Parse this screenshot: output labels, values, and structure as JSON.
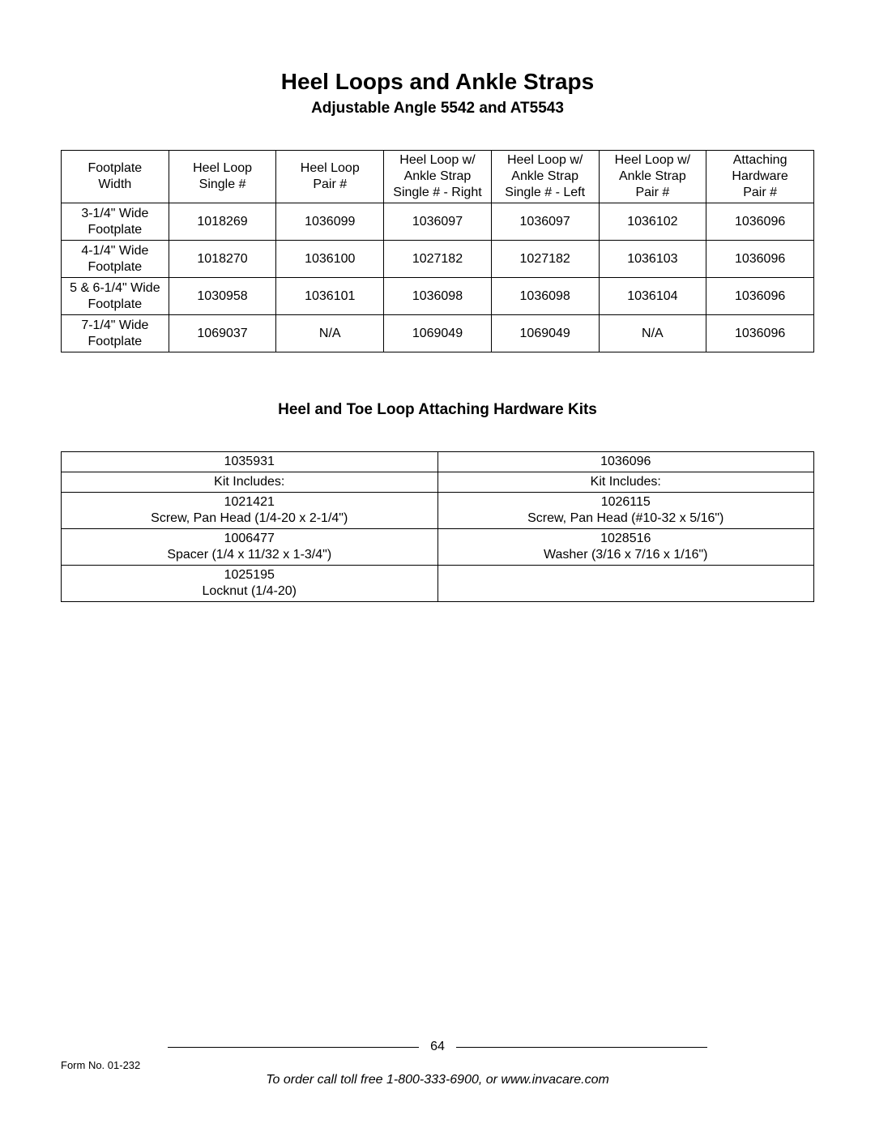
{
  "title": "Heel Loops and Ankle Straps",
  "subtitle": "Adjustable Angle 5542 and AT5543",
  "section2_title": "Heel and Toe Loop Attaching Hardware Kits",
  "page_number": "64",
  "form_no": "Form No. 01-232",
  "order_line": "To order call toll free 1-800-333-6900, or www.invacare.com",
  "table1": {
    "headers": [
      "Footplate\nWidth",
      "Heel Loop\nSingle #",
      "Heel Loop\nPair #",
      "Heel Loop w/\nAnkle Strap\nSingle #  - Right",
      "Heel Loop w/\nAnkle Strap\nSingle #  - Left",
      "Heel Loop w/\nAnkle Strap\nPair #",
      "Attaching\nHardware\nPair #"
    ],
    "rows": [
      [
        "3-1/4\" Wide\nFootplate",
        "1018269",
        "1036099",
        "1036097",
        "1036097",
        "1036102",
        "1036096"
      ],
      [
        "4-1/4\" Wide\nFootplate",
        "1018270",
        "1036100",
        "1027182",
        "1027182",
        "1036103",
        "1036096"
      ],
      [
        "5 & 6-1/4\" Wide\nFootplate",
        "1030958",
        "1036101",
        "1036098",
        "1036098",
        "1036104",
        "1036096"
      ],
      [
        "7-1/4\" Wide\nFootplate",
        "1069037",
        "N/A",
        "1069049",
        "1069049",
        "N/A",
        "1036096"
      ]
    ]
  },
  "table2": {
    "rows": [
      [
        "1035931",
        "1036096"
      ],
      [
        "Kit Includes:",
        "Kit Includes:"
      ],
      [
        "1021421\nScrew, Pan Head (1/4-20 x 2-1/4\")",
        "1026115\nScrew, Pan Head (#10-32 x 5/16\")"
      ],
      [
        "1006477\nSpacer (1/4 x 11/32 x 1-3/4\")",
        "1028516\nWasher (3/16 x 7/16 x 1/16\")"
      ],
      [
        "1025195\nLocknut (1/4-20)",
        ""
      ]
    ],
    "row_classes": [
      "",
      "",
      "two-line",
      "two-line",
      "two-line"
    ]
  }
}
